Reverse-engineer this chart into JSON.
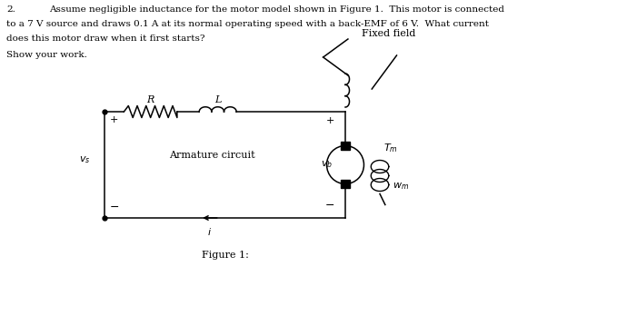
{
  "question_number": "2.",
  "question_text_line1": "Assume negligible inductance for the motor model shown in Figure 1.  This motor is connected",
  "question_text_line2": "to a 7 V source and draws 0.1 A at its normal operating speed with a back-EMF of 6 V.  What current",
  "question_text_line3": "does this motor draw when it first starts?",
  "show_work": "Show your work.",
  "figure_caption": "Figure 1:",
  "label_R": "R",
  "label_L": "L",
  "label_fixed_field": "Fixed field",
  "label_armature": "Armature circuit",
  "label_vs": "$v_s$",
  "label_vb": "$v_b$",
  "label_Tm": "$T_m$",
  "label_wm": "$w_m$",
  "label_i": "$i$",
  "label_plus_left": "+",
  "label_minus_left": "−",
  "label_plus_right": "+",
  "label_minus_right": "−",
  "bg_color": "#ffffff",
  "line_color": "#000000",
  "text_color": "#000000"
}
